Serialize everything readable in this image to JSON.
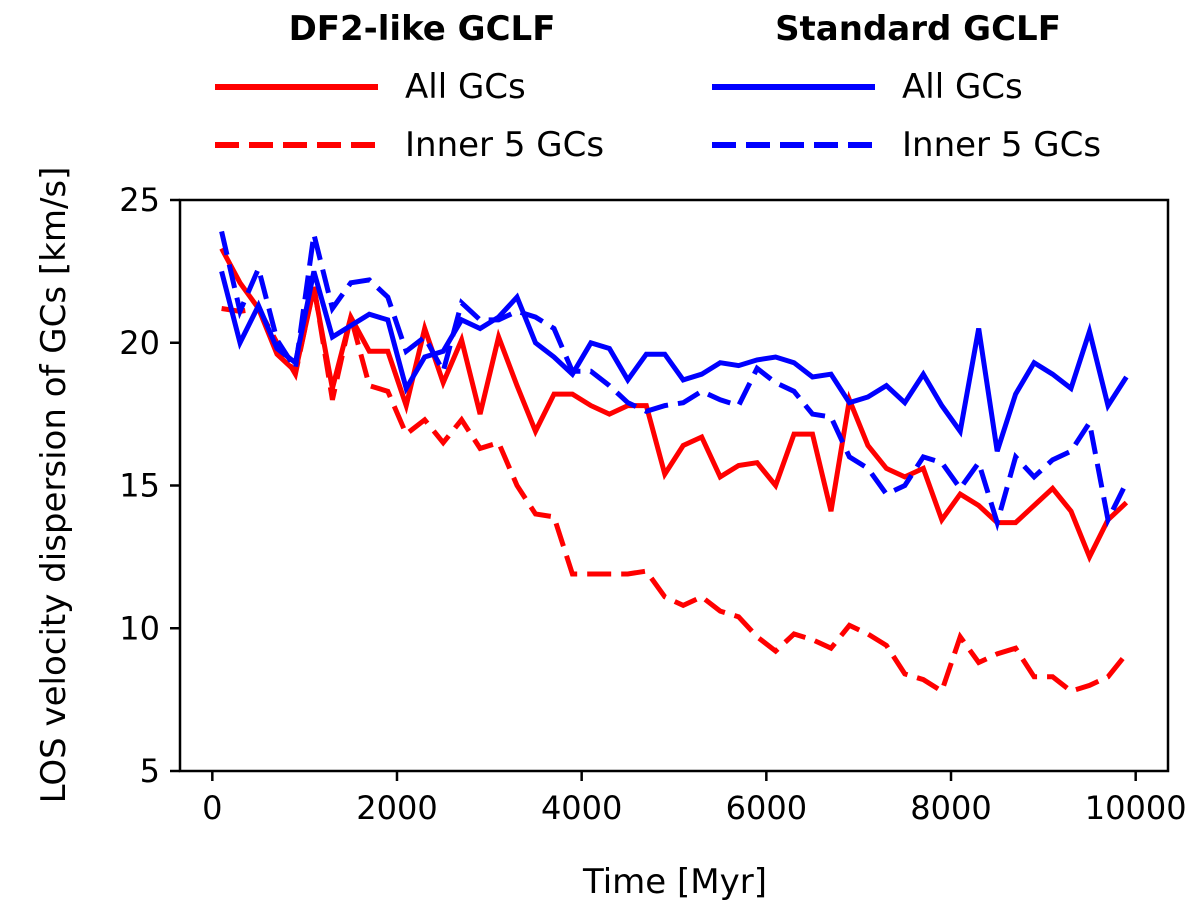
{
  "chart_data": {
    "type": "line",
    "xlabel": "Time [Myr]",
    "ylabel": "LOS velocity dispersion of GCs [km/s]",
    "xlim": [
      -350,
      10350
    ],
    "ylim": [
      5,
      25
    ],
    "xticks": [
      0,
      2000,
      4000,
      6000,
      8000,
      10000
    ],
    "yticks": [
      5,
      10,
      15,
      20,
      25
    ],
    "legend": {
      "placement": "above plot",
      "groups": [
        {
          "title": "DF2-like GCLF",
          "color": "#ff0000",
          "entries": [
            "All GCs",
            "Inner 5 GCs"
          ]
        },
        {
          "title": "Standard GCLF",
          "color": "#0000ff",
          "entries": [
            "All GCs",
            "Inner 5 GCs"
          ]
        }
      ]
    },
    "x": [
      100,
      300,
      500,
      700,
      900,
      1100,
      1300,
      1500,
      1700,
      1900,
      2100,
      2300,
      2500,
      2700,
      2900,
      3100,
      3300,
      3500,
      3700,
      3900,
      4100,
      4300,
      4500,
      4700,
      4900,
      5100,
      5300,
      5500,
      5700,
      5900,
      6100,
      6300,
      6500,
      6700,
      6900,
      7100,
      7300,
      7500,
      7700,
      7900,
      8100,
      8300,
      8500,
      8700,
      8900,
      9100,
      9300,
      9500,
      9700,
      9900
    ],
    "series": [
      {
        "name": "DF2-like GCLF — All GCs",
        "group": "DF2-like GCLF",
        "style": "solid",
        "color": "#ff0000",
        "values": [
          23.3,
          22.1,
          21.2,
          19.6,
          19.0,
          21.9,
          18.4,
          20.9,
          19.7,
          19.7,
          17.8,
          20.5,
          18.6,
          20.1,
          17.5,
          20.2,
          18.5,
          16.9,
          18.2,
          18.2,
          17.8,
          17.5,
          17.8,
          17.8,
          15.4,
          16.4,
          16.7,
          15.3,
          15.7,
          15.8,
          15.0,
          16.8,
          16.8,
          14.1,
          18.0,
          16.4,
          15.6,
          15.3,
          15.6,
          13.8,
          14.7,
          14.3,
          13.7,
          13.7,
          14.3,
          14.9,
          14.1,
          12.5,
          13.8,
          14.4
        ]
      },
      {
        "name": "DF2-like GCLF — Inner 5 GCs",
        "group": "DF2-like GCLF",
        "style": "dashed",
        "color": "#ff0000",
        "values": [
          21.2,
          21.1,
          21.2,
          20.0,
          18.9,
          22.0,
          18.0,
          20.9,
          18.5,
          18.3,
          16.8,
          17.3,
          16.5,
          17.3,
          16.3,
          16.5,
          15.0,
          14.0,
          13.9,
          11.9,
          11.9,
          11.9,
          11.9,
          12.0,
          11.1,
          10.8,
          11.1,
          10.6,
          10.4,
          9.7,
          9.2,
          9.8,
          9.6,
          9.3,
          10.1,
          9.8,
          9.4,
          8.4,
          8.2,
          7.8,
          9.7,
          8.8,
          9.1,
          9.3,
          8.3,
          8.3,
          7.8,
          8.0,
          8.3,
          9.1
        ]
      },
      {
        "name": "Standard GCLF — All GCs",
        "group": "Standard GCLF",
        "style": "solid",
        "color": "#0000ff",
        "values": [
          22.5,
          20.0,
          21.3,
          19.8,
          19.3,
          22.5,
          20.2,
          20.6,
          21.0,
          20.8,
          18.4,
          19.5,
          19.7,
          20.8,
          20.5,
          20.9,
          21.6,
          20.0,
          19.5,
          18.9,
          20.0,
          19.8,
          18.7,
          19.6,
          19.6,
          18.7,
          18.9,
          19.3,
          19.2,
          19.4,
          19.5,
          19.3,
          18.8,
          18.9,
          17.9,
          18.1,
          18.5,
          17.9,
          18.9,
          17.8,
          16.9,
          20.5,
          16.2,
          18.2,
          19.3,
          18.9,
          18.4,
          20.4,
          17.8,
          18.8
        ]
      },
      {
        "name": "Standard GCLF — Inner 5 GCs",
        "group": "Standard GCLF",
        "style": "dashed",
        "color": "#0000ff",
        "values": [
          23.9,
          21.1,
          22.6,
          20.1,
          19.1,
          23.8,
          21.2,
          22.1,
          22.2,
          21.6,
          19.7,
          20.2,
          19.0,
          21.4,
          20.8,
          20.8,
          21.1,
          20.9,
          20.5,
          19.0,
          19.0,
          18.5,
          17.9,
          17.6,
          17.8,
          17.9,
          18.3,
          18.0,
          17.8,
          19.1,
          18.6,
          18.3,
          17.5,
          17.4,
          16.0,
          15.6,
          14.7,
          15.0,
          16.0,
          15.8,
          14.9,
          15.8,
          13.7,
          16.0,
          15.3,
          15.9,
          16.2,
          17.2,
          13.8,
          15.1
        ]
      }
    ]
  }
}
